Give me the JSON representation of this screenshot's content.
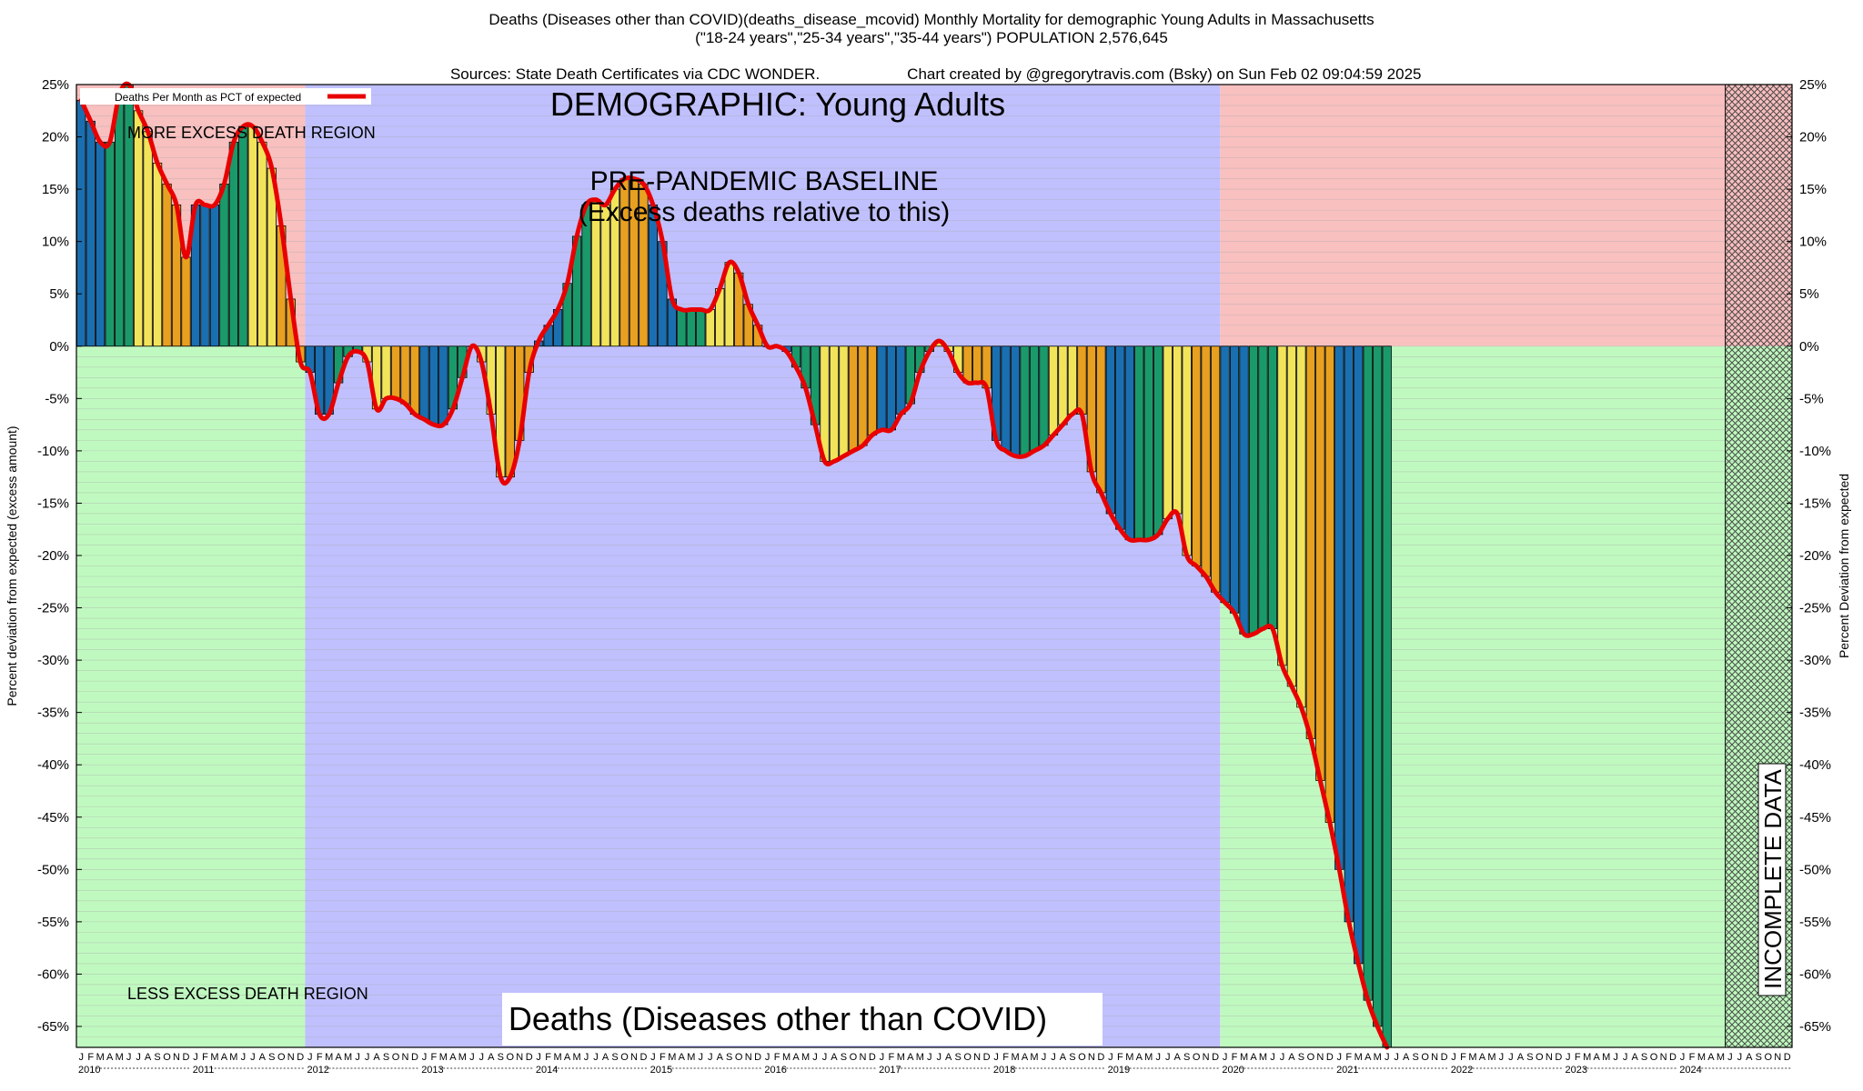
{
  "header": {
    "line1": "Deaths (Diseases other than COVID)(deaths_disease_mcovid) Monthly Mortality for demographic Young Adults in Massachusetts",
    "line2": "(\"18-24 years\",\"25-34 years\",\"35-44 years\") POPULATION 2,576,645",
    "line3_left": "Sources: State Death Certificates via CDC WONDER.",
    "line3_right": "Chart created by @gregorytravis.com (Bsky) on Sun Feb 02 09:04:59 2025"
  },
  "colors": {
    "more_region": "#f9c0c0",
    "baseline_region": "#c0c0ff",
    "less_region": "#c0f9c0",
    "bar_colors": [
      "#1a6fb0",
      "#1a9a6a",
      "#f2e45a",
      "#e8a020"
    ],
    "line": "#e80000"
  },
  "chart_data": {
    "type": "bar",
    "title": "DEMOGRAPHIC: Young Adults",
    "bottom_title": "Deaths (Diseases other than COVID)",
    "ylabel_left": "Percent deviation from expected (excess amount)",
    "ylabel_right": "Percent Deviation from expected",
    "legend": "Deaths Per Month as PCT of expected",
    "legend_position": "top-left",
    "annotations": {
      "more": "MORE EXCESS DEATH REGION",
      "less": "LESS EXCESS DEATH REGION",
      "baseline_1": "PRE-PANDEMIC BASELINE",
      "baseline_2": "(Excess deaths relative to this)",
      "incomplete": "INCOMPLETE DATA"
    },
    "ylim": [
      -67,
      25
    ],
    "yticks": [
      25,
      20,
      15,
      10,
      5,
      0,
      -5,
      -10,
      -15,
      -20,
      -25,
      -30,
      -35,
      -40,
      -45,
      -50,
      -55,
      -60,
      -65
    ],
    "grid": true,
    "month_letters": [
      "J",
      "F",
      "M",
      "A",
      "M",
      "J",
      "J",
      "A",
      "S",
      "O",
      "N",
      "D"
    ],
    "years": [
      "2010",
      "2011",
      "2012",
      "2013",
      "2014",
      "2015",
      "2016",
      "2017",
      "2018",
      "2019",
      "2020",
      "2021",
      "2022",
      "2023",
      "2024"
    ],
    "baseline_years": [
      "2012",
      "2019"
    ],
    "incomplete_from": "2024-06",
    "start": "2010-01",
    "values": [
      23.5,
      21.5,
      19.5,
      19.5,
      24.0,
      25.0,
      22.5,
      20.5,
      17.5,
      15.5,
      13.5,
      8.5,
      13.5,
      13.5,
      13.5,
      15.5,
      19.5,
      21.0,
      21.0,
      19.5,
      17.0,
      11.5,
      4.5,
      -1.5,
      -2.5,
      -6.5,
      -6.5,
      -3.5,
      -1.0,
      -0.5,
      -1.5,
      -6.0,
      -5.0,
      -5.0,
      -5.5,
      -6.5,
      -7.0,
      -7.5,
      -7.5,
      -6.0,
      -3.0,
      0.0,
      -1.5,
      -6.5,
      -12.5,
      -12.5,
      -9.0,
      -2.5,
      0.5,
      2.0,
      3.5,
      6.0,
      10.5,
      13.5,
      14.0,
      13.5,
      15.0,
      16.0,
      16.0,
      15.5,
      13.5,
      10.0,
      4.5,
      3.5,
      3.5,
      3.5,
      3.5,
      5.5,
      8.0,
      7.0,
      4.0,
      2.0,
      0.0,
      0.0,
      -0.5,
      -2.0,
      -4.0,
      -7.5,
      -11.0,
      -11.0,
      -10.5,
      -10.0,
      -9.5,
      -8.5,
      -8.0,
      -8.0,
      -6.5,
      -5.5,
      -2.5,
      -0.5,
      0.5,
      -0.5,
      -2.5,
      -3.5,
      -3.5,
      -4.0,
      -9.0,
      -10.0,
      -10.5,
      -10.5,
      -10.0,
      -9.5,
      -8.5,
      -7.5,
      -6.5,
      -6.5,
      -12.0,
      -14.0,
      -16.0,
      -17.5,
      -18.5,
      -18.5,
      -18.5,
      -18.0,
      -16.5,
      -16.0,
      -20.0,
      -21.0,
      -22.0,
      -23.5,
      -24.5,
      -25.5,
      -27.5,
      -27.5,
      -27.0,
      -27.0,
      -30.5,
      -32.5,
      -34.5,
      -37.5,
      -41.5,
      -45.5,
      -50.0,
      -55.0,
      -59.0,
      -62.5,
      -65.0,
      -67.0
    ]
  }
}
